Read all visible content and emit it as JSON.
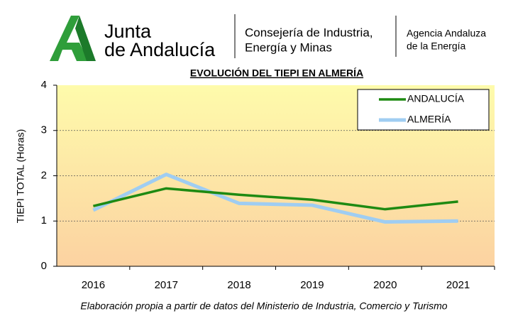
{
  "header": {
    "org_line1": "Junta",
    "org_line2": "de Andalucía",
    "dept_line1": "Consejería de Industria,",
    "dept_line2": "Energía y Minas",
    "agency_line1": "Agencia Andaluza",
    "agency_line2": "de la Energía"
  },
  "chart_data": {
    "type": "line",
    "title": "EVOLUCIÓN DEL TIEPI EN ALMERÍA",
    "y_label": "TIEPI TOTAL (Horas)",
    "caption": "Elaboración propia a partir de datos del Ministerio de Industria, Comercio y Turismo",
    "categories": [
      "2016",
      "2017",
      "2018",
      "2019",
      "2020",
      "2021"
    ],
    "series": [
      {
        "name": "ANDALUCÍA",
        "color": "#1e8a12",
        "values": [
          1.33,
          1.72,
          1.58,
          1.47,
          1.26,
          1.43
        ]
      },
      {
        "name": "ALMERÍA",
        "color": "#9fcdf2",
        "values": [
          1.24,
          2.03,
          1.39,
          1.35,
          0.98,
          1.0
        ]
      }
    ],
    "ylim": [
      0,
      4
    ],
    "yticks": [
      0,
      1,
      2,
      3,
      4
    ],
    "grid": true,
    "legend": "upper right"
  }
}
